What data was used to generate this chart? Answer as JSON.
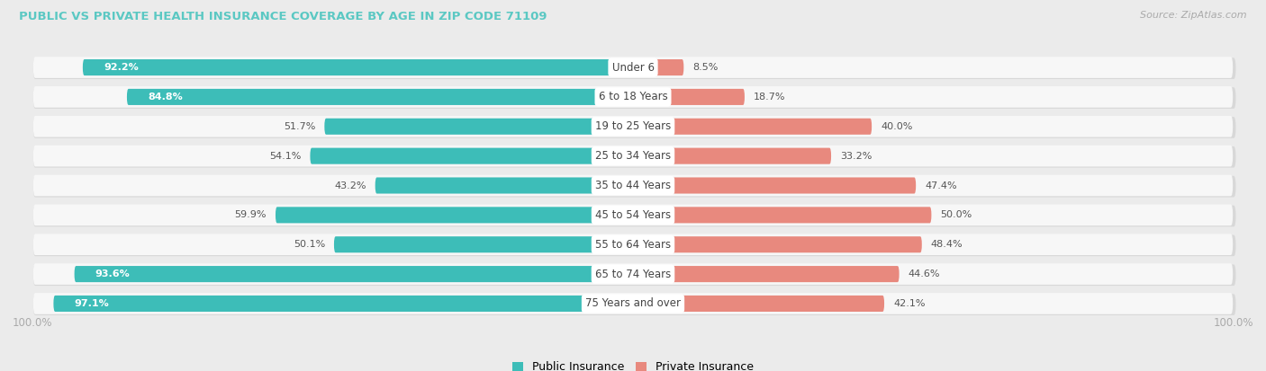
{
  "title": "PUBLIC VS PRIVATE HEALTH INSURANCE COVERAGE BY AGE IN ZIP CODE 71109",
  "source": "Source: ZipAtlas.com",
  "categories": [
    "Under 6",
    "6 to 18 Years",
    "19 to 25 Years",
    "25 to 34 Years",
    "35 to 44 Years",
    "45 to 54 Years",
    "55 to 64 Years",
    "65 to 74 Years",
    "75 Years and over"
  ],
  "public_values": [
    92.2,
    84.8,
    51.7,
    54.1,
    43.2,
    59.9,
    50.1,
    93.6,
    97.1
  ],
  "private_values": [
    8.5,
    18.7,
    40.0,
    33.2,
    47.4,
    50.0,
    48.4,
    44.6,
    42.1
  ],
  "public_color": "#3DBDB8",
  "private_color": "#E8897E",
  "public_color_light": "#7DD4D0",
  "public_label": "Public Insurance",
  "private_label": "Private Insurance",
  "bg_color": "#EBEBEB",
  "row_bg_color": "#F7F7F7",
  "row_shadow_color": "#D8D8D8",
  "title_color": "#5BC8C3",
  "source_color": "#AAAAAA",
  "text_color_white": "#FFFFFF",
  "text_color_dark": "#555555",
  "max_value": 100.0,
  "axis_label": "100.0%"
}
